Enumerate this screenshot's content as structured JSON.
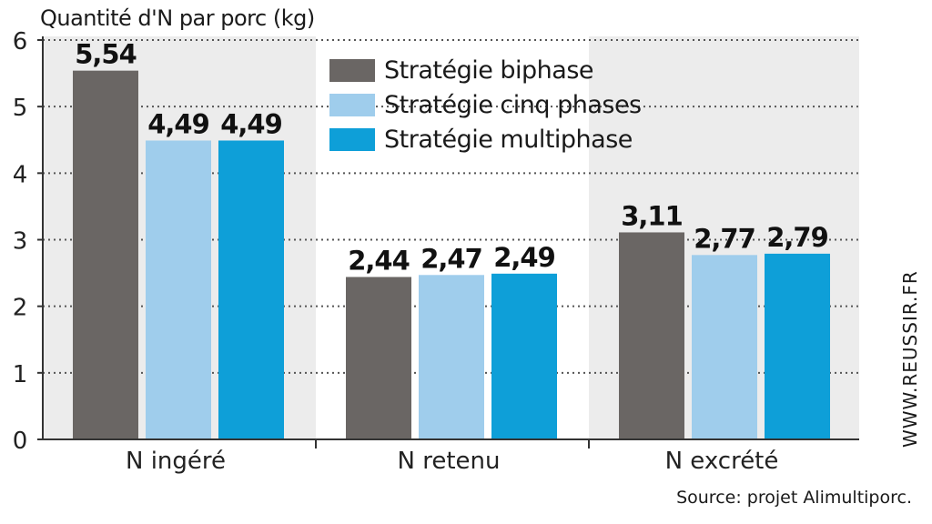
{
  "header": {
    "y_title": "Quantité d'N par porc (kg)"
  },
  "watermark": "WWW.REUSSIR.FR",
  "source": "Source: projet Alimultiporc.",
  "chart_data": {
    "type": "bar",
    "categories": [
      "N ingéré",
      "N retenu",
      "N excrété"
    ],
    "series": [
      {
        "name": "Stratégie biphase",
        "values": [
          5.54,
          2.44,
          3.11
        ],
        "labels": [
          "5,54",
          "2,44",
          "3,11"
        ],
        "color": "#6a6664"
      },
      {
        "name": "Stratégie cinq phases",
        "values": [
          4.49,
          2.47,
          2.77
        ],
        "labels": [
          "4,49",
          "2,47",
          "2,77"
        ],
        "color": "#9fcdec"
      },
      {
        "name": "Stratégie multiphase",
        "values": [
          4.49,
          2.49,
          2.79
        ],
        "labels": [
          "4,49",
          "2,49",
          "2,79"
        ],
        "color": "#0e9fd8"
      }
    ],
    "yticks": [
      "0",
      "1",
      "2",
      "3",
      "4",
      "5",
      "6"
    ],
    "ylim": [
      0,
      6
    ],
    "grid": true,
    "legend": "top-center",
    "background_bands": "#ececec"
  }
}
